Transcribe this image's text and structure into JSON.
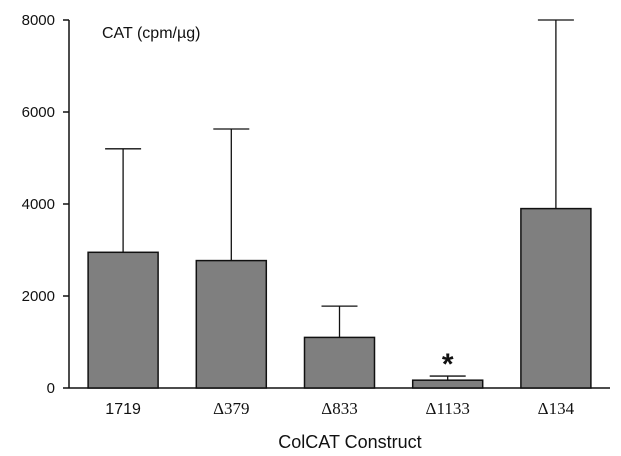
{
  "chart_data": {
    "type": "bar",
    "categories": [
      "1719",
      "Δ379",
      "Δ833",
      "Δ1133",
      "Δ134"
    ],
    "values": [
      2950,
      2770,
      1100,
      170,
      3900
    ],
    "error_upper": [
      5200,
      5630,
      1780,
      260,
      8000
    ],
    "ylabel": "CAT (cpm/µg)",
    "xlabel": "ColCAT Construct",
    "ylim": [
      0,
      8000
    ],
    "yticks": [
      0,
      2000,
      4000,
      6000,
      8000
    ],
    "grid": false,
    "annotations": [
      {
        "category": "Δ1133",
        "text": "*"
      }
    ],
    "bar_color": "#7f7f7f",
    "edge_color": "#111111"
  }
}
